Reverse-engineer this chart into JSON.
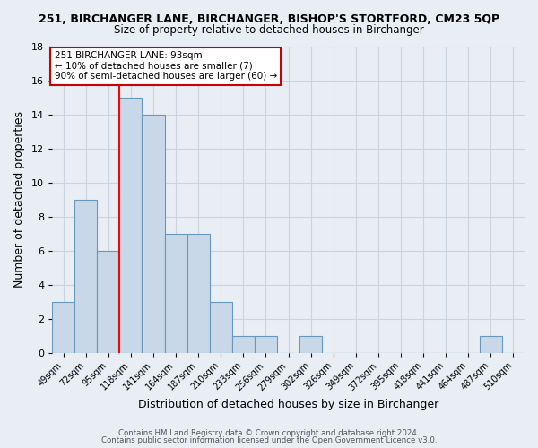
{
  "title_line1": "251, BIRCHANGER LANE, BIRCHANGER, BISHOP'S STORTFORD, CM23 5QP",
  "title_line2": "Size of property relative to detached houses in Birchanger",
  "xlabel": "Distribution of detached houses by size in Birchanger",
  "ylabel": "Number of detached properties",
  "xlabels": [
    "49sqm",
    "72sqm",
    "95sqm",
    "118sqm",
    "141sqm",
    "164sqm",
    "187sqm",
    "210sqm",
    "233sqm",
    "256sqm",
    "279sqm",
    "302sqm",
    "326sqm",
    "349sqm",
    "372sqm",
    "395sqm",
    "418sqm",
    "441sqm",
    "464sqm",
    "487sqm",
    "510sqm"
  ],
  "bar_heights": [
    3,
    9,
    6,
    15,
    14,
    7,
    7,
    3,
    1,
    1,
    0,
    1,
    0,
    0,
    0,
    0,
    0,
    0,
    0,
    1,
    0
  ],
  "bar_color": "#c8d8e8",
  "bar_edge_color": "#6699bb",
  "annotation_title": "251 BIRCHANGER LANE: 93sqm",
  "annotation_line2": "← 10% of detached houses are smaller (7)",
  "annotation_line3": "90% of semi-detached houses are larger (60) →",
  "annotation_box_edge": "#cc0000",
  "annotation_box_bg": "white",
  "ylim": [
    0,
    18
  ],
  "yticks": [
    0,
    2,
    4,
    6,
    8,
    10,
    12,
    14,
    16,
    18
  ],
  "footer_line1": "Contains HM Land Registry data © Crown copyright and database right 2024.",
  "footer_line2": "Contains public sector information licensed under the Open Government Licence v3.0.",
  "bg_color": "#e8eef4",
  "grid_color": "#c8d4e0"
}
